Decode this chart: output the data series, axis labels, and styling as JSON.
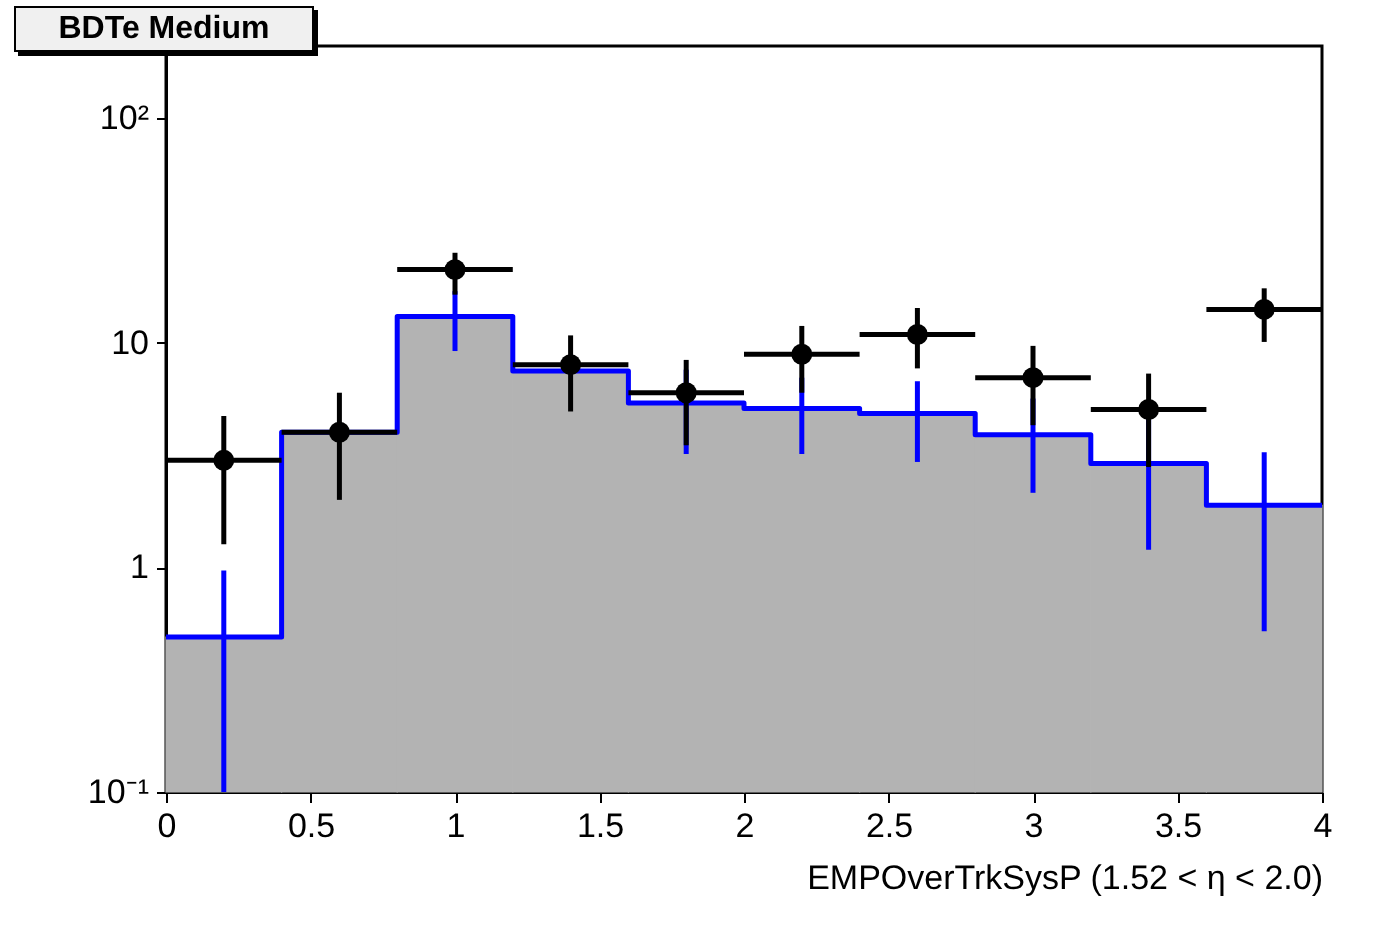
{
  "chart_data": {
    "type": "histogram",
    "title": "BDTe Medium",
    "xlabel": "EMPOverTrkSysP (1.52 < η < 2.0)",
    "bins": [
      0,
      0.4,
      0.8,
      1.2,
      1.6,
      2.0,
      2.4,
      2.8,
      3.2,
      3.6,
      4.0
    ],
    "series": [
      {
        "type": "step",
        "color": "#0000ff",
        "x": [
          0,
          0.4,
          0.8,
          1.2,
          1.6,
          2.0,
          2.4,
          2.8,
          3.2,
          3.6,
          4.0
        ],
        "values": [
          0.49,
          4.0,
          13.1,
          7.5,
          5.4,
          5.1,
          4.85,
          3.9,
          2.9,
          1.89,
          1.89
        ]
      },
      {
        "color": "#b3b3b3",
        "values": [
          0.49,
          4.0,
          13.1,
          7.5,
          5.4,
          5.1,
          4.85,
          3.9,
          2.9,
          1.89
        ],
        "errors": [
          [
            0.1,
            0.97
          ],
          null,
          3.9,
          null,
          2.2,
          1.9,
          1.9,
          1.75,
          1.7,
          1.37
        ]
      },
      {
        "type": "scatter",
        "color": "#000000",
        "marker": "circle",
        "x": [
          0.2,
          0.6,
          1.0,
          1.4,
          1.8,
          2.2,
          2.6,
          3.0,
          3.4,
          3.8
        ],
        "values": [
          3.0,
          4.0,
          21.2,
          8.0,
          6.0,
          8.9,
          10.9,
          7.0,
          5.05,
          14.1
        ],
        "errors": [
          [
            1.27,
            4.72
          ],
          [
            2.0,
            6.0
          ],
          [
            16.4,
            25.2
          ],
          [
            4.95,
            10.8
          ],
          [
            3.5,
            8.4
          ],
          [
            6.0,
            11.9
          ],
          [
            7.7,
            14.3
          ],
          [
            4.3,
            9.7
          ],
          [
            2.8,
            7.3
          ],
          [
            10.1,
            17.5
          ]
        ],
        "xerrors": [
          0.2,
          0.2,
          0.2,
          0.2,
          0.2,
          0.2,
          0.2,
          0.2,
          0.2,
          0.2
        ]
      }
    ],
    "xlim": [
      0,
      4
    ],
    "xticks": [
      0,
      0.5,
      1,
      1.5,
      2,
      2.5,
      3,
      3.5,
      4
    ],
    "ylim": [
      0.1,
      210
    ],
    "yticks": [
      {
        "value": 0.1,
        "label": "10⁻¹"
      },
      1,
      10,
      {
        "value": 100,
        "label": "10²"
      }
    ],
    "log": "y",
    "grid": false
  }
}
